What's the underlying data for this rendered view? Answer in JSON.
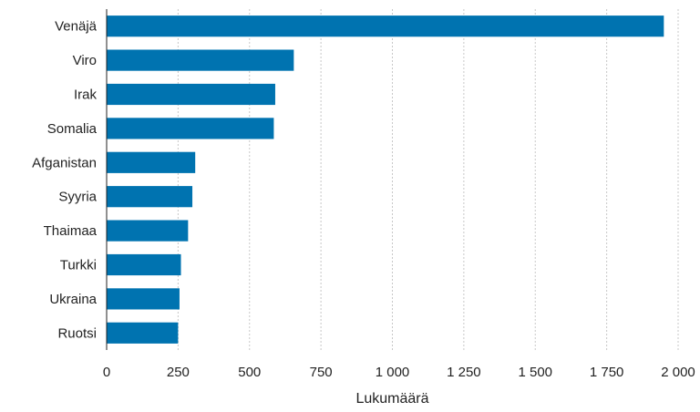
{
  "chart_data": {
    "type": "bar",
    "orientation": "horizontal",
    "categories": [
      "Venäjä",
      "Viro",
      "Irak",
      "Somalia",
      "Afganistan",
      "Syyria",
      "Thaimaa",
      "Turkki",
      "Ukraina",
      "Ruotsi"
    ],
    "values": [
      1950,
      655,
      590,
      585,
      310,
      300,
      285,
      260,
      255,
      250
    ],
    "xlabel": "Lukumäärä",
    "xlim": [
      0,
      2000
    ],
    "xticks": [
      0,
      250,
      500,
      750,
      1000,
      1250,
      1500,
      1750,
      2000
    ],
    "xtick_labels": [
      "0",
      "250",
      "500",
      "750",
      "1 000",
      "1 250",
      "1 500",
      "1 750",
      "2 000"
    ],
    "grid": true,
    "bar_color": "#0073b0"
  }
}
